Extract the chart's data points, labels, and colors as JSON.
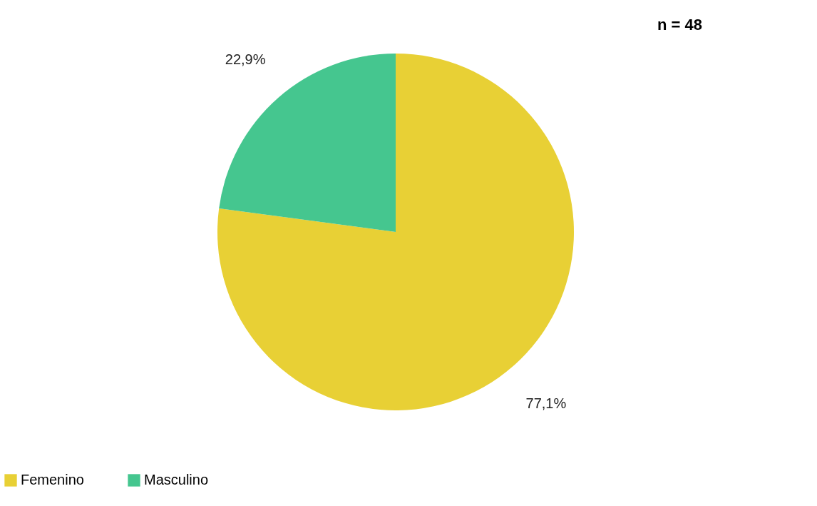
{
  "chart_data": {
    "type": "pie",
    "categories": [
      "Femenino",
      "Masculino"
    ],
    "values": [
      77.1,
      22.9
    ],
    "colors": [
      "#e8d035",
      "#45c68f"
    ],
    "value_labels": [
      "77,1%",
      "22,9%"
    ],
    "annotations": [
      "n = 48"
    ],
    "legend": "bottom"
  }
}
